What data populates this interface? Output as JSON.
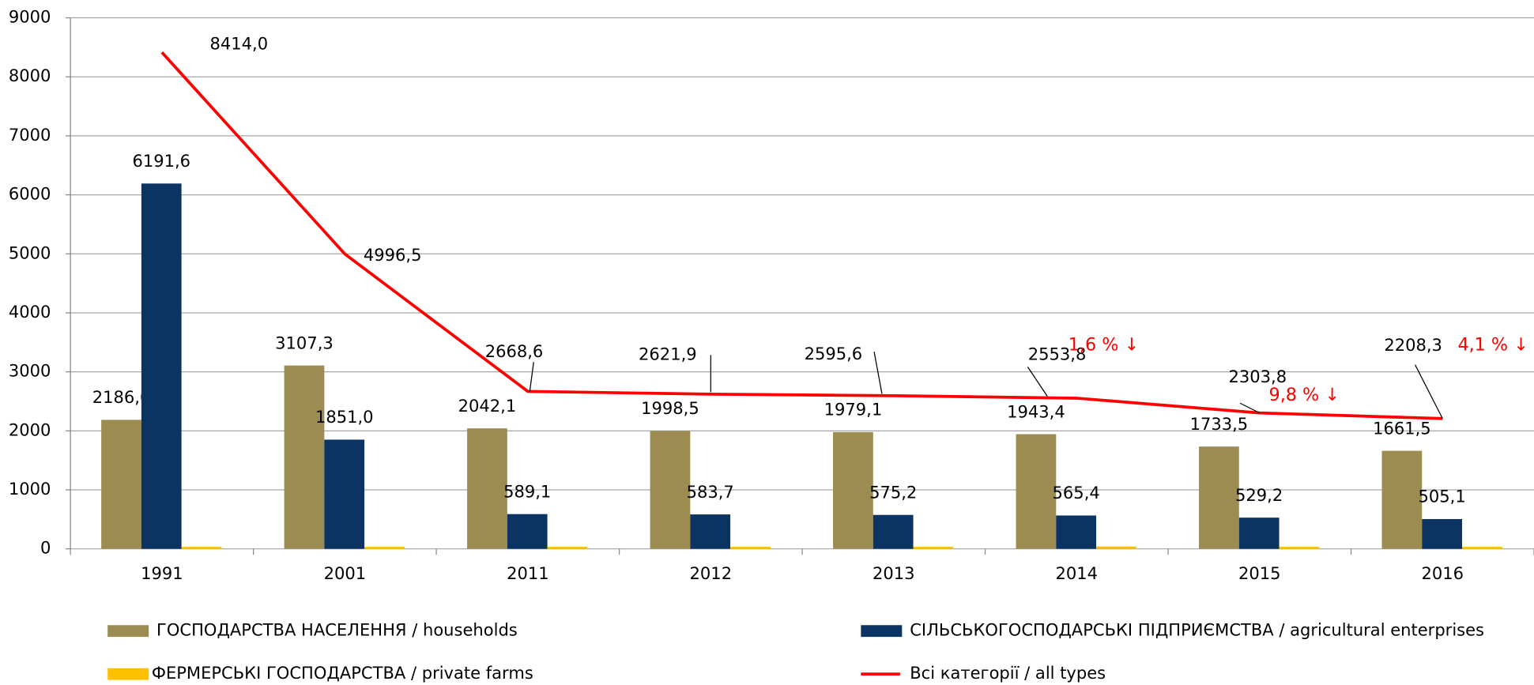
{
  "chart_data": {
    "type": "bar_line",
    "categories": [
      "1991",
      "2001",
      "2011",
      "2012",
      "2013",
      "2014",
      "2015",
      "2016"
    ],
    "ylim": [
      0,
      9000
    ],
    "yticks": [
      0,
      1000,
      2000,
      3000,
      4000,
      5000,
      6000,
      7000,
      8000,
      9000
    ],
    "grid": true,
    "series": [
      {
        "name": "ГОСПОДАРСТВА НАСЕЛЕННЯ / households",
        "color": "#9c8c52",
        "kind": "bar",
        "values": [
          2186.6,
          3107.3,
          2042.1,
          1998.5,
          1979.1,
          1943.4,
          1733.5,
          1661.5
        ],
        "value_labels": [
          "2186,6",
          "3107,3",
          "2042,1",
          "1998,5",
          "1979,1",
          "1943,4",
          "1733,5",
          "1661,5"
        ]
      },
      {
        "name": "СІЛЬСЬКОГОСПОДАРСЬКІ ПІДПРИЄМСТВА / agricultural enterprises",
        "color": "#0b3463",
        "kind": "bar",
        "values": [
          6191.6,
          1851.0,
          589.1,
          583.7,
          575.2,
          565.4,
          529.2,
          505.1
        ],
        "value_labels": [
          "6191,6",
          "1851,0",
          "589,1",
          "583,7",
          "575,2",
          "565,4",
          "529,2",
          "505,1"
        ]
      },
      {
        "name": "ФЕРМЕРСЬКІ ГОСПОДАРСТВА / private farms",
        "color": "#ffc000",
        "kind": "bar",
        "values": [
          35,
          35,
          35,
          35,
          35,
          40,
          35,
          35
        ]
      },
      {
        "name": "Всі категорії / all types",
        "color": "#ff0000",
        "kind": "line",
        "values": [
          8414.0,
          4996.5,
          2668.6,
          2621.9,
          2595.6,
          2553.8,
          2303.8,
          2208.3
        ],
        "value_labels": [
          "8414,0",
          "4996,5",
          "2668,6",
          "2621,9",
          "2595,6",
          "2553,8",
          "2303,8",
          "2208,3"
        ]
      }
    ],
    "annotations": [
      "1,6 % ↓",
      "9,8 % ↓",
      "4,1 % ↓"
    ]
  }
}
